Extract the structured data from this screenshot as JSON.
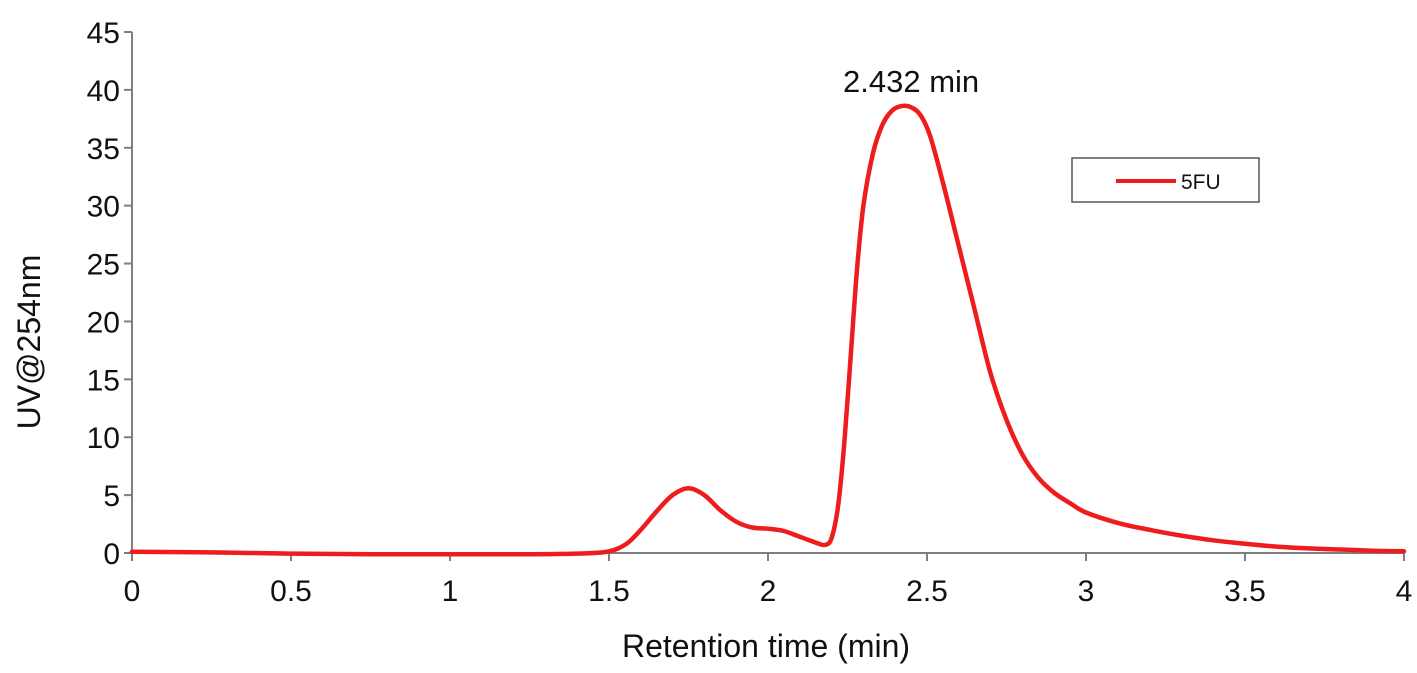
{
  "chart_data": {
    "type": "line",
    "title": "",
    "xlabel": "Retention time (min)",
    "ylabel": "UV@254nm",
    "xlim": [
      0,
      4
    ],
    "ylim": [
      0,
      45
    ],
    "x_ticks": [
      0,
      0.5,
      1,
      1.5,
      2,
      2.5,
      3,
      3.5,
      4
    ],
    "x_tick_labels": [
      "0",
      "0.5",
      "1",
      "1.5",
      "2",
      "2.5",
      "3",
      "3.5",
      "4"
    ],
    "y_ticks": [
      0,
      5,
      10,
      15,
      20,
      25,
      30,
      35,
      40,
      45
    ],
    "y_tick_labels": [
      "0",
      "5",
      "10",
      "15",
      "20",
      "25",
      "30",
      "35",
      "40",
      "45"
    ],
    "grid": false,
    "legend": {
      "position": "top-right",
      "entries": [
        "5FU"
      ]
    },
    "annotations": [
      {
        "text": "2.432 min",
        "x": 2.45,
        "y": 40.5
      }
    ],
    "series": [
      {
        "name": "5FU",
        "color": "#ee1c1c",
        "x": [
          0,
          0.25,
          0.5,
          0.75,
          1.0,
          1.25,
          1.4,
          1.48,
          1.52,
          1.56,
          1.6,
          1.65,
          1.7,
          1.75,
          1.8,
          1.85,
          1.9,
          1.95,
          2.0,
          2.05,
          2.1,
          2.15,
          2.18,
          2.2,
          2.22,
          2.24,
          2.26,
          2.28,
          2.3,
          2.33,
          2.36,
          2.39,
          2.42,
          2.45,
          2.48,
          2.51,
          2.55,
          2.6,
          2.65,
          2.7,
          2.75,
          2.8,
          2.85,
          2.9,
          2.95,
          3.0,
          3.1,
          3.2,
          3.3,
          3.4,
          3.5,
          3.6,
          3.7,
          3.8,
          3.9,
          4.0
        ],
        "y": [
          0.1,
          0.05,
          -0.05,
          -0.1,
          -0.1,
          -0.1,
          -0.05,
          0.05,
          0.3,
          0.9,
          2.0,
          3.6,
          5.0,
          5.6,
          5.0,
          3.7,
          2.7,
          2.2,
          2.1,
          1.9,
          1.4,
          0.9,
          0.7,
          1.3,
          4.0,
          9.5,
          17.0,
          24.5,
          30.0,
          34.5,
          37.0,
          38.2,
          38.6,
          38.5,
          37.8,
          36.0,
          32.0,
          26.5,
          21.0,
          15.5,
          11.5,
          8.5,
          6.5,
          5.2,
          4.3,
          3.5,
          2.6,
          2.0,
          1.5,
          1.1,
          0.8,
          0.55,
          0.4,
          0.3,
          0.2,
          0.15
        ]
      }
    ]
  }
}
